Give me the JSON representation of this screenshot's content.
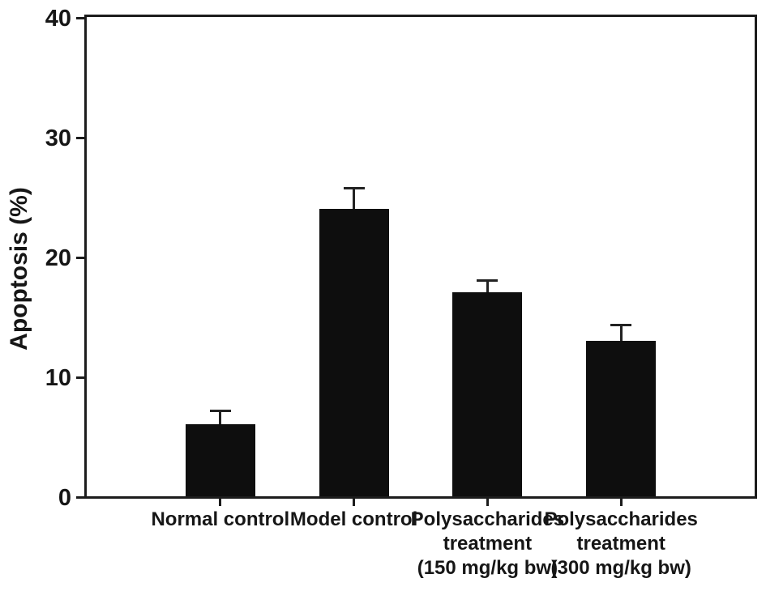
{
  "chart_data": {
    "type": "bar",
    "title": "",
    "ylabel": "Apoptosis (%)",
    "xlabel": "",
    "ylim": [
      0,
      40
    ],
    "yticks": [
      0,
      10,
      20,
      30,
      40
    ],
    "grid": false,
    "legend_position": "none",
    "frame": "full-box",
    "error_bars": "upper-only",
    "bar_color": "#0e0e0e",
    "axis_color": "#1c1c1c",
    "background_color": "#ffffff",
    "categories": [
      {
        "label": "Normal control",
        "lines": [
          "Normal control"
        ]
      },
      {
        "label": "Model control",
        "lines": [
          "Model control"
        ]
      },
      {
        "label": "Polysaccharides treatment (150 mg/kg bw)",
        "lines": [
          "Polysaccharides",
          "treatment",
          "(150 mg/kg bw)"
        ]
      },
      {
        "label": "Polysaccharides treatment (300 mg/kg bw)",
        "lines": [
          "Polysaccharides",
          "treatment",
          "(300 mg/kg bw)"
        ]
      }
    ],
    "series": [
      {
        "name": "Apoptosis (%)",
        "values": [
          6,
          24,
          17,
          13
        ],
        "errors": [
          1.2,
          1.8,
          1.1,
          1.4
        ]
      }
    ]
  }
}
